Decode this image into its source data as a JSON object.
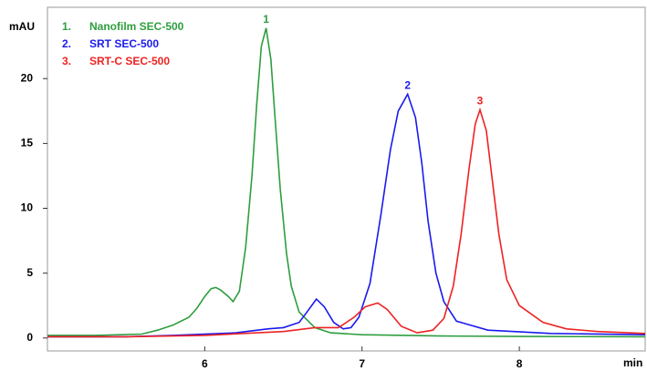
{
  "chart_data": {
    "type": "line",
    "y_label": "mAU",
    "x_label": "min",
    "xlim": [
      5.0,
      8.8
    ],
    "xticks": [
      6,
      7,
      8
    ],
    "ylim": [
      -1,
      25.5
    ],
    "yticks": [
      0,
      5,
      10,
      15,
      20
    ],
    "series": [
      {
        "name": "Nanofilm SEC-500",
        "legend_label": "1.",
        "peak_label": "1",
        "color": "#2e9e3e",
        "x": [
          5.0,
          5.3,
          5.6,
          5.7,
          5.8,
          5.9,
          5.95,
          6.0,
          6.04,
          6.07,
          6.1,
          6.15,
          6.18,
          6.22,
          6.26,
          6.3,
          6.33,
          6.36,
          6.39,
          6.42,
          6.45,
          6.48,
          6.52,
          6.55,
          6.6,
          6.7,
          6.8,
          7.0,
          7.5,
          8.0,
          8.8
        ],
        "values": [
          0.2,
          0.2,
          0.3,
          0.6,
          1.0,
          1.6,
          2.3,
          3.2,
          3.8,
          3.9,
          3.7,
          3.2,
          2.8,
          3.6,
          7.0,
          12.5,
          18.0,
          22.5,
          23.9,
          21.5,
          16.5,
          11.5,
          6.5,
          4.0,
          2.0,
          0.8,
          0.4,
          0.25,
          0.15,
          0.12,
          0.1
        ]
      },
      {
        "name": "SRT SEC-500",
        "legend_label": "2.",
        "peak_label": "2",
        "color": "#1a1aee",
        "x": [
          5.0,
          5.5,
          5.8,
          6.2,
          6.4,
          6.5,
          6.6,
          6.65,
          6.71,
          6.76,
          6.82,
          6.88,
          6.93,
          6.98,
          7.05,
          7.12,
          7.18,
          7.23,
          7.29,
          7.34,
          7.38,
          7.42,
          7.47,
          7.52,
          7.6,
          7.8,
          8.2,
          8.8
        ],
        "values": [
          0.1,
          0.1,
          0.2,
          0.4,
          0.7,
          0.8,
          1.2,
          2.0,
          3.0,
          2.4,
          1.2,
          0.7,
          0.8,
          1.6,
          4.2,
          9.5,
          14.5,
          17.5,
          18.8,
          17.0,
          13.5,
          9.0,
          5.0,
          2.8,
          1.3,
          0.6,
          0.35,
          0.25
        ]
      },
      {
        "name": "SRT-C SEC-500",
        "legend_label": "3.",
        "peak_label": "3",
        "color": "#ee2222",
        "x": [
          5.0,
          5.5,
          6.0,
          6.5,
          6.7,
          6.85,
          6.95,
          7.02,
          7.1,
          7.16,
          7.25,
          7.35,
          7.45,
          7.52,
          7.58,
          7.63,
          7.68,
          7.72,
          7.75,
          7.79,
          7.83,
          7.87,
          7.92,
          8.0,
          8.15,
          8.3,
          8.5,
          8.8
        ],
        "values": [
          0.1,
          0.1,
          0.2,
          0.5,
          0.8,
          0.8,
          1.6,
          2.4,
          2.7,
          2.2,
          0.9,
          0.4,
          0.6,
          1.5,
          4.0,
          8.0,
          13.0,
          16.5,
          17.6,
          16.0,
          12.0,
          8.0,
          4.5,
          2.5,
          1.2,
          0.7,
          0.5,
          0.35
        ]
      }
    ]
  }
}
